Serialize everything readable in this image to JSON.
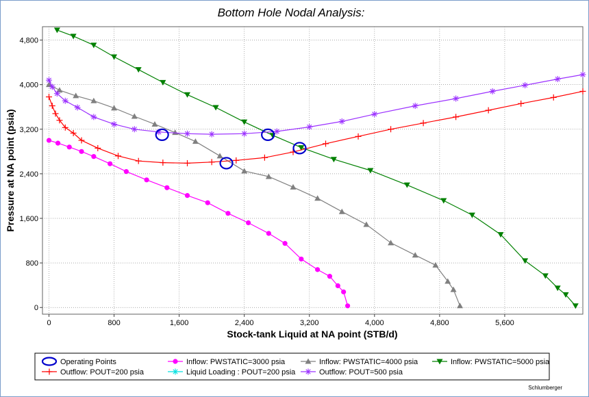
{
  "chart_data": {
    "type": "line",
    "title": "Bottom Hole Nodal Analysis:",
    "xlabel": "Stock-tank Liquid at NA point (STB/d)",
    "ylabel": "Pressure at NA point (psia)",
    "xlim": [
      -80,
      6560
    ],
    "ylim": [
      -120,
      5040
    ],
    "xticks": [
      0,
      800,
      1600,
      2400,
      3200,
      4000,
      4800,
      5600
    ],
    "xtick_labels": [
      "0",
      "800",
      "1,600",
      "2,400",
      "3,200",
      "4,000",
      "4,800",
      "5,600"
    ],
    "yticks": [
      0,
      800,
      1600,
      2400,
      3200,
      4000,
      4800
    ],
    "ytick_labels": [
      "0",
      "800",
      "1,600",
      "2,400",
      "3,200",
      "4,000",
      "4,800"
    ],
    "grid": true,
    "legend_position": "bottom",
    "footer": "Schlumberger",
    "series": [
      {
        "name": "Inflow: PWSTATIC=3000 psia",
        "color": "#ff00ff",
        "marker": "circle",
        "x": [
          0,
          110,
          250,
          400,
          550,
          750,
          950,
          1200,
          1450,
          1700,
          1950,
          2200,
          2450,
          2700,
          2900,
          3100,
          3300,
          3450,
          3550,
          3620,
          3670
        ],
        "y": [
          3000,
          2950,
          2880,
          2800,
          2710,
          2580,
          2440,
          2290,
          2150,
          2010,
          1880,
          1690,
          1520,
          1330,
          1150,
          870,
          680,
          560,
          390,
          280,
          30
        ]
      },
      {
        "name": "Inflow: PWSTATIC=4000 psia",
        "color": "#808080",
        "marker": "triangle-up",
        "x": [
          0,
          130,
          330,
          550,
          800,
          1050,
          1300,
          1550,
          1800,
          2100,
          2400,
          2700,
          3000,
          3300,
          3600,
          3900,
          4200,
          4500,
          4750,
          4900,
          4970,
          5050
        ],
        "y": [
          4000,
          3900,
          3800,
          3710,
          3580,
          3430,
          3290,
          3140,
          2980,
          2720,
          2450,
          2350,
          2160,
          1960,
          1720,
          1490,
          1160,
          940,
          760,
          470,
          320,
          30
        ]
      },
      {
        "name": "Inflow: PWSTATIC=5000 psia",
        "color": "#008000",
        "marker": "triangle-down",
        "x": [
          100,
          300,
          550,
          800,
          1100,
          1400,
          1700,
          2050,
          2400,
          2750,
          3100,
          3500,
          3950,
          4400,
          4850,
          5200,
          5550,
          5850,
          6100,
          6250,
          6350,
          6470
        ],
        "y": [
          4980,
          4870,
          4710,
          4500,
          4270,
          4040,
          3820,
          3590,
          3330,
          3090,
          2870,
          2660,
          2460,
          2200,
          1920,
          1660,
          1310,
          840,
          570,
          350,
          230,
          30
        ]
      },
      {
        "name": "Outflow: POUT=200 psia",
        "color": "#ff0000",
        "marker": "plus",
        "x": [
          0,
          40,
          80,
          130,
          200,
          300,
          400,
          600,
          850,
          1100,
          1400,
          1700,
          2000,
          2300,
          2650,
          3000,
          3400,
          3800,
          4200,
          4600,
          5000,
          5400,
          5800,
          6200,
          6560
        ],
        "y": [
          3780,
          3620,
          3480,
          3360,
          3230,
          3130,
          3000,
          2860,
          2720,
          2630,
          2600,
          2590,
          2610,
          2640,
          2690,
          2790,
          2940,
          3070,
          3200,
          3310,
          3420,
          3540,
          3660,
          3770,
          3880
        ]
      },
      {
        "name": "Liquid Loading : POUT=200 psia",
        "color": "#00e0e0",
        "marker": "star",
        "x": [],
        "y": []
      },
      {
        "name": "Outflow: POUT=500 psia",
        "color": "#9b30ff",
        "marker": "asterisk",
        "x": [
          0,
          40,
          100,
          200,
          350,
          550,
          800,
          1050,
          1350,
          1700,
          2000,
          2400,
          2800,
          3200,
          3600,
          4000,
          4500,
          5000,
          5450,
          5850,
          6250,
          6560
        ],
        "y": [
          4080,
          3960,
          3840,
          3710,
          3590,
          3420,
          3290,
          3200,
          3150,
          3120,
          3110,
          3120,
          3160,
          3240,
          3340,
          3470,
          3620,
          3750,
          3880,
          3990,
          4100,
          4180
        ]
      }
    ],
    "operating_points": {
      "name": "Operating Points",
      "color": "#0000cc",
      "marker": "ellipse",
      "x": [
        1390,
        2180,
        2690,
        3080
      ],
      "y": [
        3100,
        2590,
        3100,
        2860
      ]
    },
    "legend_order": [
      "Operating Points",
      "Inflow: PWSTATIC=3000 psia",
      "Inflow: PWSTATIC=4000 psia",
      "Inflow: PWSTATIC=5000 psia",
      "Outflow: POUT=200 psia",
      "Liquid Loading : POUT=200 psia",
      "Outflow: POUT=500 psia"
    ]
  }
}
